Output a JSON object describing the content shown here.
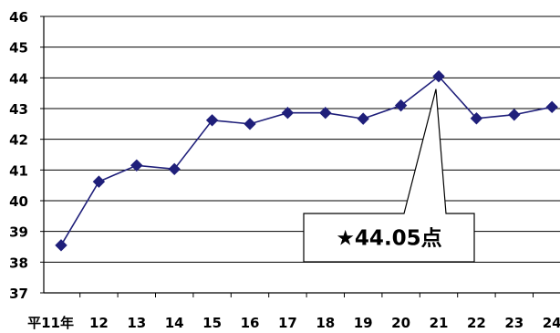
{
  "chart_data": {
    "type": "line",
    "title": "",
    "xlabel": "",
    "ylabel": "",
    "categories": [
      "平11年",
      "12",
      "13",
      "14",
      "15",
      "16",
      "17",
      "18",
      "19",
      "20",
      "21",
      "22",
      "23",
      "24"
    ],
    "series": [
      {
        "values": [
          38.55,
          40.62,
          41.15,
          41.03,
          42.62,
          42.5,
          42.86,
          42.86,
          42.67,
          43.1,
          44.05,
          42.68,
          42.8,
          43.05
        ]
      }
    ],
    "ylim": [
      37,
      46
    ],
    "yticks": [
      "37",
      "38",
      "39",
      "40",
      "41",
      "42",
      "43",
      "44",
      "45",
      "46"
    ],
    "grid": true,
    "legend": "none",
    "line_color": "#1f1f7a",
    "marker": "diamond",
    "annotation": {
      "category": "21",
      "value": 44.05,
      "text": "★44.05点"
    }
  }
}
